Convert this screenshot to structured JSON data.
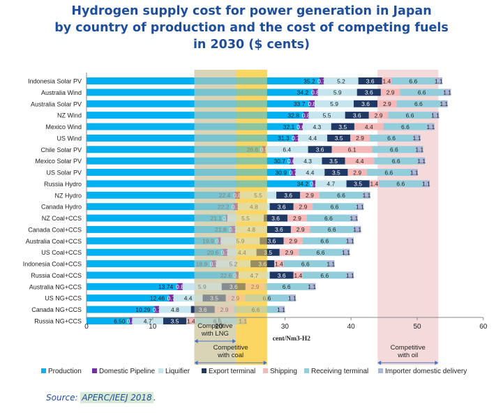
{
  "title_lines": [
    "Hydrogen supply cost for power generation in Japan",
    "by country of production and the cost of competing fuels",
    "in 2030 ($ cents)"
  ],
  "source": {
    "prefix": "Source: ",
    "text": "APERC/IEEJ 2018",
    "suffix": "."
  },
  "colors": {
    "Production": "#00b0f0",
    "Domestic Pipeline": "#7030a0",
    "Liquifier": "#c6e5ef",
    "Export terminal": "#1f3864",
    "Shipping": "#f4b8b8",
    "Receiving terminal": "#92cddc",
    "Importer domestic delivery": "#a9b8d8",
    "lng_band": "#d9d4b5",
    "coal_band": "#fcd55f",
    "oil_band": "#f2d4d4"
  },
  "chart_data": {
    "type": "bar",
    "orientation": "horizontal",
    "stacked": true,
    "xlabel": "cent/Nm3-H2",
    "xlim": [
      0,
      60
    ],
    "xticks": [
      0,
      10,
      20,
      30,
      40,
      50,
      60
    ],
    "categories": [
      "Indonesia Solar PV",
      "Australia Wind",
      "Australia Solar PV",
      "NZ Wind",
      "Mexico Wind",
      "US Wind",
      "Chile Solar PV",
      "Mexico Solar PV",
      "US Solar PV",
      "Russia Hydro",
      "NZ Hydro",
      "Canada Hydro",
      "NZ Coal+CCS",
      "Canada Coal+CCS",
      "Australia Coal+CCS",
      "US Coal+CCS",
      "Indonesia Coal+CCS",
      "Russia Coal+CCS",
      "Australia NG+CCS",
      "US NG+CCS",
      "Canada NG+CCS",
      "Russia NG+CCS"
    ],
    "series": [
      {
        "name": "Production",
        "labels": [
          "35.2",
          "34.2",
          "33.7",
          "32.8",
          "32.1",
          "31.3",
          "26.6",
          "30.7",
          "30.9",
          "34.2",
          "22.4",
          "22.2",
          "21.1",
          "21.8",
          "19.9",
          "20.6",
          "18.9",
          "22.6",
          "13.74",
          "12.46",
          "10.29",
          "6.50"
        ],
        "values": [
          35.2,
          34.2,
          33.7,
          32.8,
          32.1,
          31.3,
          26.6,
          30.7,
          30.9,
          34.2,
          22.4,
          22.2,
          21.1,
          21.8,
          19.9,
          20.6,
          18.9,
          22.6,
          13.74,
          12.46,
          10.29,
          6.5
        ]
      },
      {
        "name": "Domestic Pipeline",
        "labels": [
          "0.7",
          "0.8",
          "0.8",
          "0.8",
          "0.6",
          "0.7",
          "0.5",
          "0.6",
          "0.7",
          "0.4",
          "0.8",
          "0.7",
          "0.2",
          "0.7",
          "0.4",
          "0.7",
          "0.7",
          "0.4",
          "0.8",
          "0.7",
          "0.7",
          "0.4"
        ],
        "values": [
          0.7,
          0.8,
          0.8,
          0.8,
          0.6,
          0.7,
          0.5,
          0.6,
          0.7,
          0.4,
          0.8,
          0.7,
          0.2,
          0.7,
          0.4,
          0.7,
          0.7,
          0.4,
          0.8,
          0.7,
          0.7,
          0.4
        ]
      },
      {
        "name": "Liquifier",
        "labels": [
          "5.2",
          "5.9",
          "5.9",
          "5.5",
          "4.3",
          "4.4",
          "6.4",
          "4.3",
          "4.4",
          "4.7",
          "5.5",
          "4.8",
          "5.5",
          "4.8",
          "5.9",
          "4.4",
          "5.2",
          "4.7",
          "5.9",
          "4.4",
          "4.8",
          "4.7"
        ],
        "values": [
          5.2,
          5.9,
          5.9,
          5.5,
          4.3,
          4.4,
          6.4,
          4.3,
          4.4,
          4.7,
          5.5,
          4.8,
          5.5,
          4.8,
          5.9,
          4.4,
          5.2,
          4.7,
          5.9,
          4.4,
          4.8,
          4.7
        ]
      },
      {
        "name": "Export terminal",
        "labels": [
          "3.6",
          "3.6",
          "3.6",
          "3.6",
          "3.5",
          "3.5",
          "3.6",
          "3.5",
          "3.5",
          "3.5",
          "3.6",
          "3.6",
          "3.6",
          "3.6",
          "3.6",
          "3.5",
          "3.6",
          "3.6",
          "3.6",
          "3.5",
          "3.6",
          "3.5"
        ],
        "values": [
          3.6,
          3.6,
          3.6,
          3.6,
          3.5,
          3.5,
          3.6,
          3.5,
          3.5,
          3.5,
          3.6,
          3.6,
          3.6,
          3.6,
          3.6,
          3.5,
          3.6,
          3.6,
          3.6,
          3.5,
          3.6,
          3.5
        ]
      },
      {
        "name": "Shipping",
        "labels": [
          "1.4",
          "2.9",
          "2.9",
          "2.9",
          "4.4",
          "2.9",
          "6.1",
          "4.4",
          "2.9",
          "1.4",
          "2.9",
          "2.9",
          "2.9",
          "2.9",
          "2.9",
          "2.9",
          "1.4",
          "1.4",
          "2.9",
          "2.9",
          "2.9",
          "1.4"
        ],
        "values": [
          1.4,
          2.9,
          2.9,
          2.9,
          4.4,
          2.9,
          6.1,
          4.4,
          2.9,
          1.4,
          2.9,
          2.9,
          2.9,
          2.9,
          2.9,
          2.9,
          1.4,
          1.4,
          2.9,
          2.9,
          2.9,
          1.4
        ]
      },
      {
        "name": "Receiving terminal",
        "labels": [
          "6.6",
          "6.6",
          "6.6",
          "6.6",
          "6.6",
          "6.6",
          "6.6",
          "6.6",
          "6.6",
          "6.6",
          "6.6",
          "6.6",
          "6.6",
          "6.6",
          "6.6",
          "6.6",
          "6.6",
          "6.6",
          "6.6",
          "6.6",
          "6.6",
          "6.6"
        ],
        "values": [
          6.6,
          6.6,
          6.6,
          6.6,
          6.6,
          6.6,
          6.6,
          6.6,
          6.6,
          6.6,
          6.6,
          6.6,
          6.6,
          6.6,
          6.6,
          6.6,
          6.6,
          6.6,
          6.6,
          6.6,
          6.6,
          6.6
        ]
      },
      {
        "name": "Importer domestic delivery",
        "labels": [
          "1.1",
          "1.1",
          "1.1",
          "1.1",
          "1.1",
          "1.1",
          "1.1",
          "1.1",
          "1.1",
          "1.1",
          "1.1",
          "1.1",
          "1.1",
          "1.1",
          "1.1",
          "1.1",
          "1.1",
          "1.1",
          "1.1",
          "1.1",
          "1.1",
          "1.1"
        ],
        "values": [
          1.1,
          1.1,
          1.1,
          1.1,
          1.1,
          1.1,
          1.1,
          1.1,
          1.1,
          1.1,
          1.1,
          1.1,
          1.1,
          1.1,
          1.1,
          1.1,
          1.1,
          1.1,
          1.1,
          1.1,
          1.1,
          1.1
        ]
      }
    ],
    "bands": [
      {
        "label_lines": [
          "Competitive",
          "with LNG"
        ],
        "range": [
          16.3,
          22.6
        ],
        "key": "lng_band"
      },
      {
        "label_lines": [
          "Competitive",
          "with coal"
        ],
        "range": [
          22.6,
          27.3
        ],
        "key": "coal_band"
      },
      {
        "label_lines": [
          "Competitive",
          "with oil"
        ],
        "range": [
          44.0,
          53.2
        ],
        "key": "oil_band"
      }
    ],
    "legend_position": "bottom"
  }
}
